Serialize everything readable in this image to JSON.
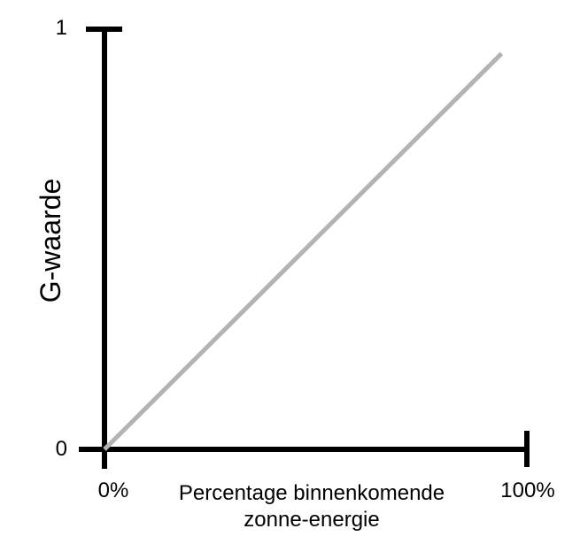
{
  "chart_data": {
    "type": "line",
    "title": "",
    "xlabel": "Percentage binnenkomende zonne-energie",
    "xlabel_lines": [
      "Percentage binnenkomende",
      "zonne-energie"
    ],
    "ylabel": "G-waarde",
    "x_tick_labels": [
      "0%",
      "100%"
    ],
    "y_tick_labels": [
      "0",
      "1"
    ],
    "xlim": [
      0,
      100
    ],
    "ylim": [
      0,
      1
    ],
    "grid": false,
    "legend": false,
    "axis_color": "#000000",
    "background_color": "#ffffff",
    "series": [
      {
        "name": "G-waarde",
        "color": "#b3b3b3",
        "points": [
          [
            0,
            0
          ],
          [
            94,
            0.94
          ]
        ],
        "relationship": "linear: G-waarde = percentage binnenkomende zonne-energie / 100"
      }
    ]
  }
}
